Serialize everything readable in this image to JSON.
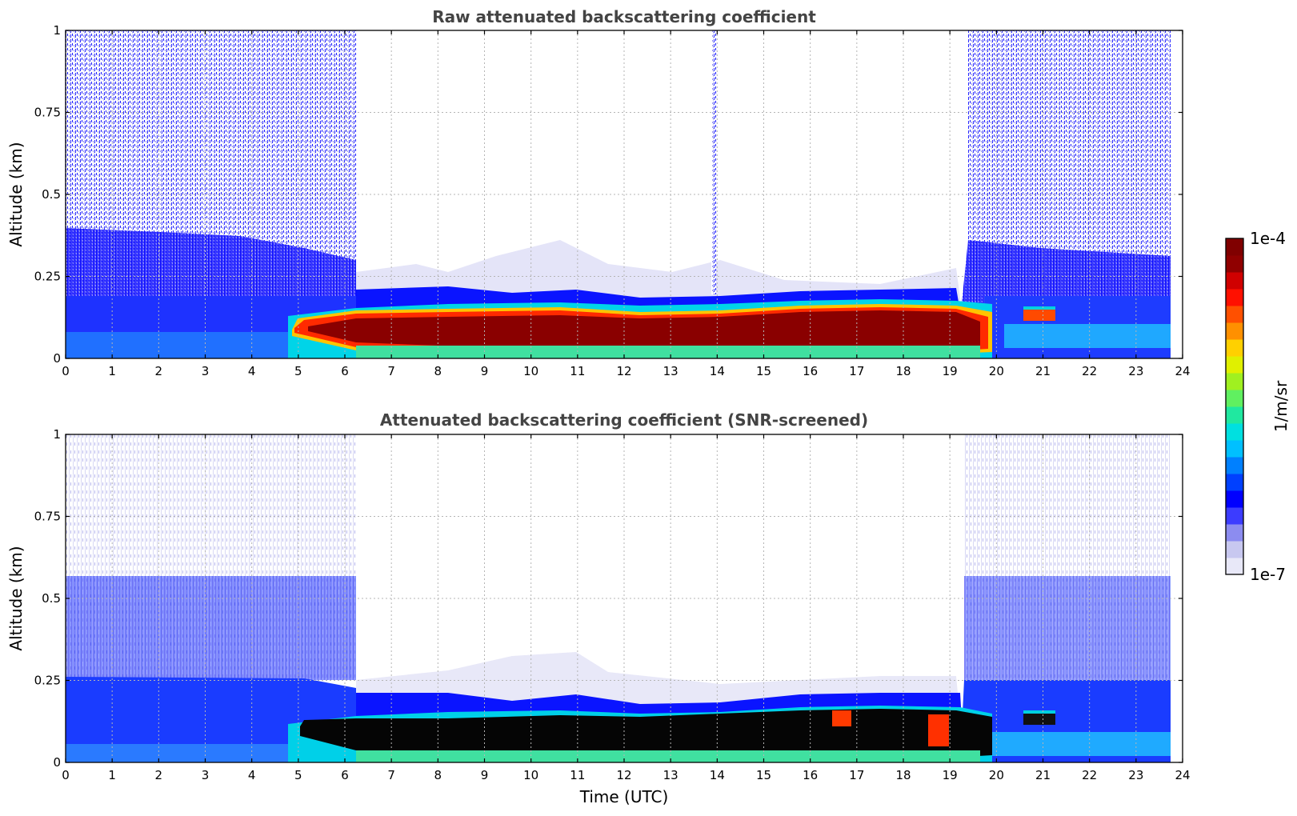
{
  "chart_data": [
    {
      "type": "heatmap",
      "title": "Raw attenuated backscattering coefficient",
      "xlabel": "",
      "ylabel": "Altitude (km)",
      "xlim": [
        0,
        24
      ],
      "ylim": [
        0,
        1
      ],
      "x_ticks": [
        "0",
        "1",
        "2",
        "3",
        "4",
        "5",
        "6",
        "7",
        "8",
        "9",
        "10",
        "11",
        "12",
        "13",
        "14",
        "15",
        "16",
        "17",
        "18",
        "19",
        "20",
        "21",
        "22",
        "23",
        "24"
      ],
      "y_ticks": [
        "0",
        "0.25",
        "0.5",
        "0.75",
        "1"
      ],
      "grid": true,
      "data_extent_hours": [
        0,
        23.75
      ],
      "layers": [
        {
          "feature": "noisy background reaching top of plot",
          "x_range": [
            0,
            6.25
          ],
          "y_range": [
            0,
            1
          ],
          "level": "low"
        },
        {
          "feature": "dense low-altitude signal",
          "x_range": [
            0,
            6.25
          ],
          "y_range": [
            0,
            0.38
          ],
          "level": "moderate"
        },
        {
          "feature": "noisy background reaching top of plot",
          "x_range": [
            19.4,
            23.75
          ],
          "y_range": [
            0,
            1
          ],
          "level": "low"
        },
        {
          "feature": "dense low-altitude signal",
          "x_range": [
            19.4,
            23.75
          ],
          "y_range": [
            0,
            0.3
          ],
          "level": "moderate"
        },
        {
          "feature": "boundary layer top",
          "x_range": [
            6.25,
            19.4
          ],
          "y_range": [
            0,
            0.2
          ],
          "level": "moderate"
        },
        {
          "feature": "intense aerosol layer",
          "x_range": [
            5.0,
            19.4
          ],
          "y_range": [
            0.02,
            0.14
          ],
          "level": "high"
        },
        {
          "feature": "thin vertical streak",
          "x_range": [
            13.9,
            14.3
          ],
          "y_range": [
            0.2,
            1
          ],
          "level": "low"
        },
        {
          "feature": "isolated layer",
          "x_range": [
            20.7,
            21.4
          ],
          "y_range": [
            0.11,
            0.16
          ],
          "level": "moderate-high"
        }
      ]
    },
    {
      "type": "heatmap",
      "title": "Attenuated backscattering coefficient (SNR-screened)",
      "xlabel": "Time (UTC)",
      "ylabel": "Altitude (km)",
      "xlim": [
        0,
        24
      ],
      "ylim": [
        0,
        1
      ],
      "x_ticks": [
        "0",
        "1",
        "2",
        "3",
        "4",
        "5",
        "6",
        "7",
        "8",
        "9",
        "10",
        "11",
        "12",
        "13",
        "14",
        "15",
        "16",
        "17",
        "18",
        "19",
        "20",
        "21",
        "22",
        "23",
        "24"
      ],
      "y_ticks": [
        "0",
        "0.25",
        "0.5",
        "0.75",
        "1"
      ],
      "grid": true,
      "data_extent_hours": [
        0,
        23.75
      ],
      "masked_color": "#000000",
      "layers": [
        {
          "feature": "sparse screened background",
          "x_range": [
            0,
            6.25
          ],
          "y_range": [
            0.26,
            1
          ],
          "level": "very low"
        },
        {
          "feature": "low-altitude signal",
          "x_range": [
            0,
            6.25
          ],
          "y_range": [
            0,
            0.26
          ],
          "level": "moderate"
        },
        {
          "feature": "sparse screened background",
          "x_range": [
            19.4,
            23.75
          ],
          "y_range": [
            0.25,
            1
          ],
          "level": "very low"
        },
        {
          "feature": "low-altitude signal",
          "x_range": [
            19.4,
            23.75
          ],
          "y_range": [
            0,
            0.25
          ],
          "level": "moderate"
        },
        {
          "feature": "boundary layer top",
          "x_range": [
            6.25,
            19.4
          ],
          "y_range": [
            0,
            0.2
          ],
          "level": "moderate"
        },
        {
          "feature": "saturated / masked core",
          "x_range": [
            5.1,
            20.0
          ],
          "y_range": [
            0.0,
            0.16
          ],
          "level": "masked"
        },
        {
          "feature": "red patches",
          "x_range": [
            18.5,
            19.0
          ],
          "y_range": [
            0.05,
            0.15
          ],
          "level": "high"
        },
        {
          "feature": "isolated layer",
          "x_range": [
            20.7,
            21.4
          ],
          "y_range": [
            0.11,
            0.16
          ],
          "level": "moderate-high"
        }
      ]
    }
  ],
  "colorbar": {
    "min_label": "1e-7",
    "max_label": "1e-4",
    "label": "1/m/sr",
    "scale": "log",
    "colormap": [
      "#e8e8f8",
      "#c8c8f0",
      "#8c8cf0",
      "#3c3cff",
      "#0000ff",
      "#0040ff",
      "#0080ff",
      "#00c0ff",
      "#00e0e0",
      "#20e8a0",
      "#60f060",
      "#a0f020",
      "#e0f000",
      "#ffd000",
      "#ff9000",
      "#ff5000",
      "#ff1000",
      "#d00000",
      "#900000",
      "#800000"
    ]
  }
}
